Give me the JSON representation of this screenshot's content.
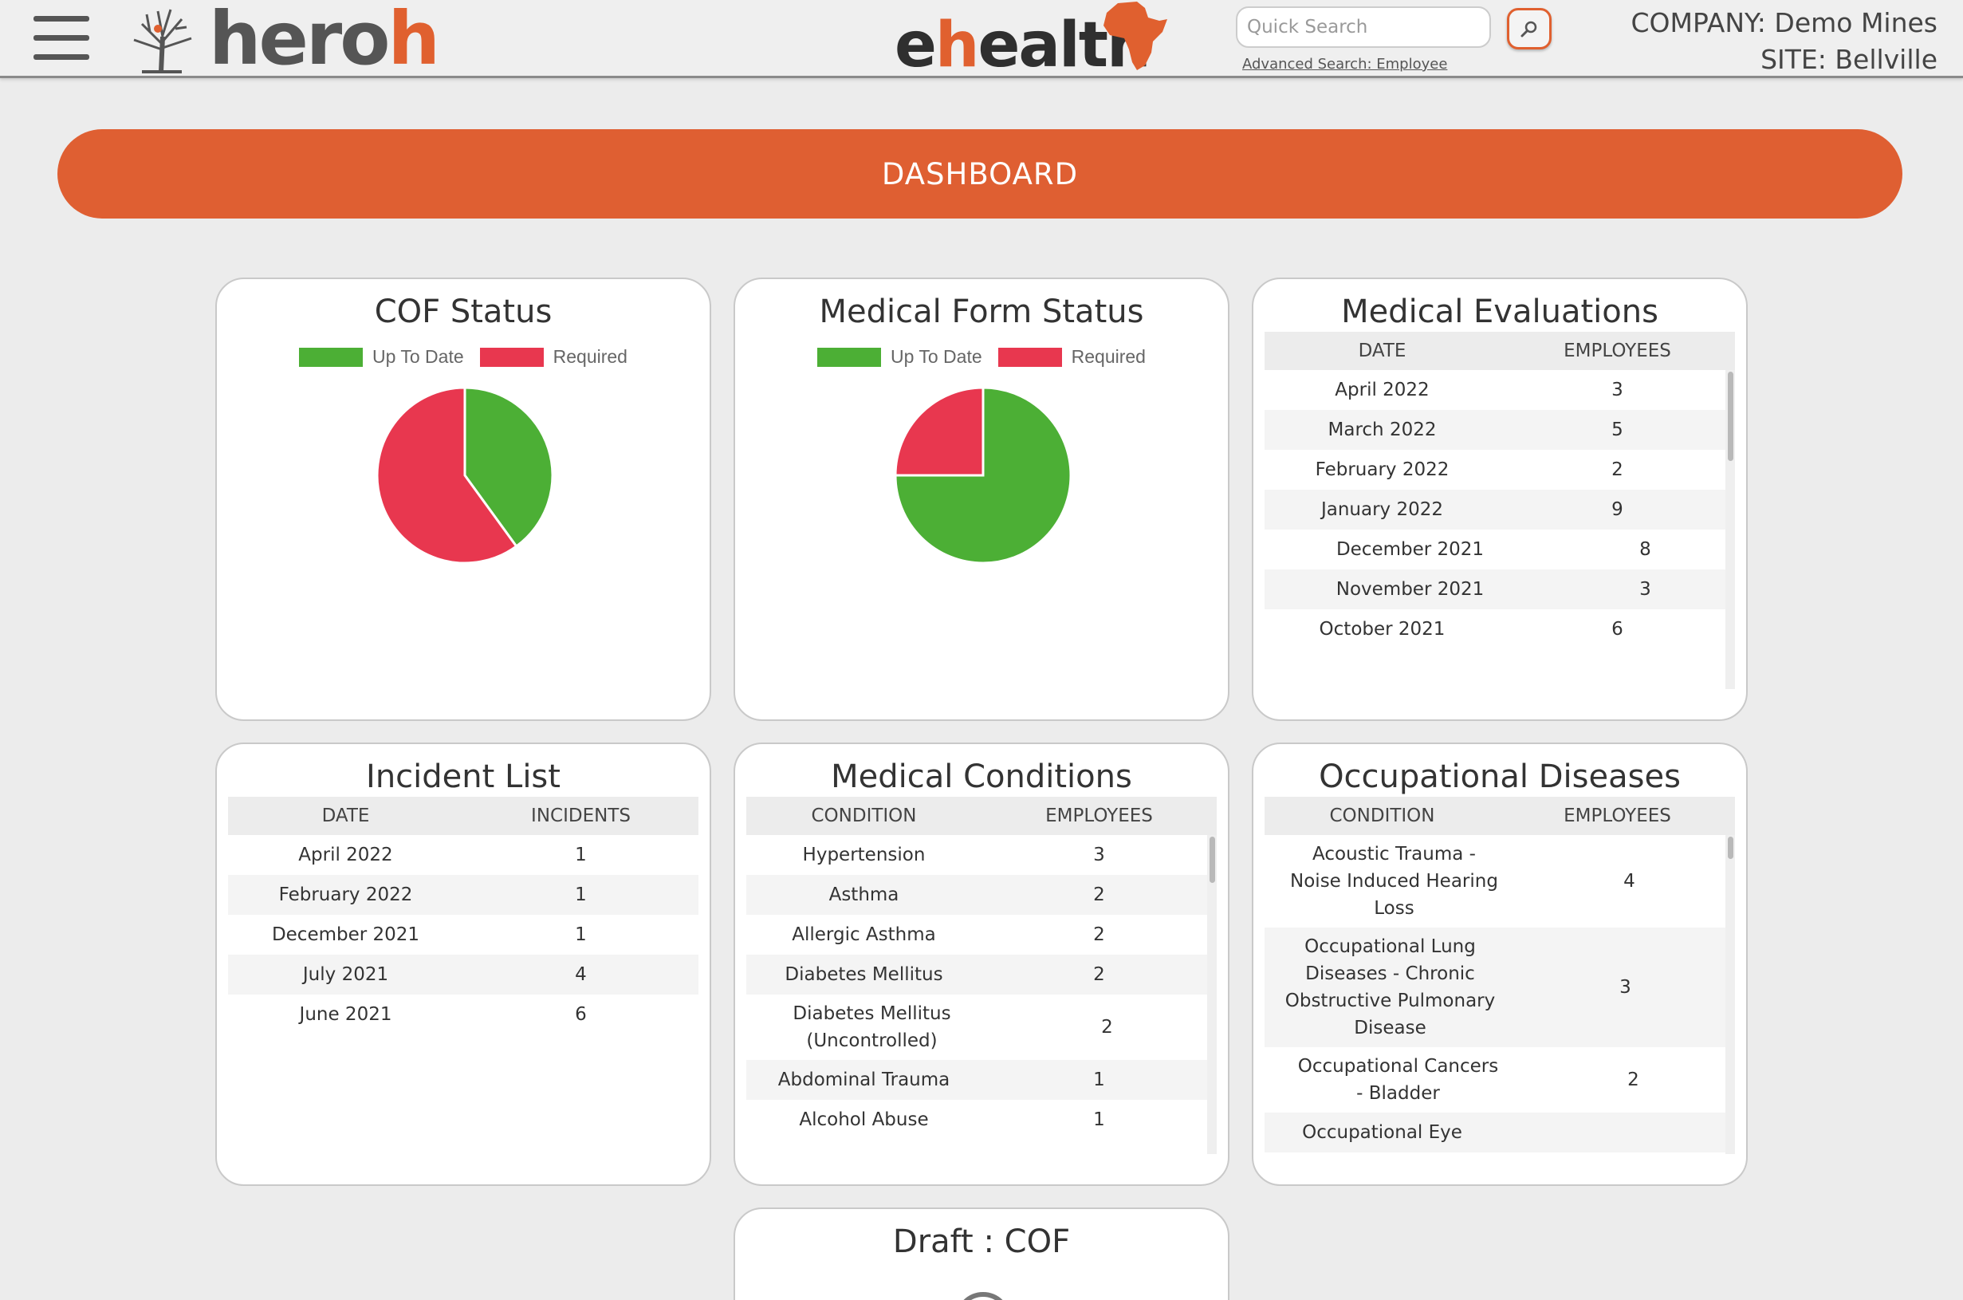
{
  "header": {
    "brand_heroh_main": "hero",
    "brand_heroh_accent": "h",
    "brand_ehealth_pre": "e",
    "brand_ehealth_accent": "h",
    "brand_ehealth_post": "ealth",
    "search_placeholder": "Quick Search",
    "advanced_search_label": "Advanced Search: Employee",
    "company": "COMPANY: Demo Mines",
    "site": "SITE: Bellville",
    "accent_color": "#e0602f"
  },
  "banner": {
    "title": "DASHBOARD"
  },
  "cof_status": {
    "title": "COF Status",
    "chart_data": {
      "type": "pie",
      "title": "COF Status",
      "labels": [
        "Up To Date",
        "Required"
      ],
      "values": [
        40,
        60
      ],
      "colors": [
        "#4caf35",
        "#e8374f"
      ],
      "legend": "top"
    }
  },
  "medical_form_status": {
    "title": "Medical Form Status",
    "chart_data": {
      "type": "pie",
      "title": "Medical Form Status",
      "labels": [
        "Up To Date",
        "Required"
      ],
      "values": [
        75,
        25
      ],
      "colors": [
        "#4caf35",
        "#e8374f"
      ],
      "legend": "top"
    }
  },
  "medical_evaluations": {
    "title": "Medical Evaluations",
    "columns": [
      "DATE",
      "EMPLOYEES"
    ],
    "rows": [
      {
        "date": "April 2022",
        "employees": "3"
      },
      {
        "date": "March 2022",
        "employees": "5"
      },
      {
        "date": "February 2022",
        "employees": "2"
      },
      {
        "date": "January 2022",
        "employees": "9"
      },
      {
        "date": "December 2021",
        "employees": "8"
      },
      {
        "date": "November 2021",
        "employees": "3"
      },
      {
        "date": "October 2021",
        "employees": "6"
      }
    ]
  },
  "incident_list": {
    "title": "Incident List",
    "columns": [
      "DATE",
      "INCIDENTS"
    ],
    "rows": [
      {
        "date": "April 2022",
        "incidents": "1"
      },
      {
        "date": "February 2022",
        "incidents": "1"
      },
      {
        "date": "December 2021",
        "incidents": "1"
      },
      {
        "date": "July 2021",
        "incidents": "4"
      },
      {
        "date": "June 2021",
        "incidents": "6"
      }
    ]
  },
  "medical_conditions": {
    "title": "Medical Conditions",
    "columns": [
      "CONDITION",
      "EMPLOYEES"
    ],
    "rows": [
      {
        "condition": "Hypertension",
        "employees": "3"
      },
      {
        "condition": "Asthma",
        "employees": "2"
      },
      {
        "condition": "Allergic Asthma",
        "employees": "2"
      },
      {
        "condition": "Diabetes Mellitus",
        "employees": "2"
      },
      {
        "condition": "Diabetes Mellitus (Uncontrolled)",
        "employees": "2"
      },
      {
        "condition": "Abdominal Trauma",
        "employees": "1"
      },
      {
        "condition": "Alcohol Abuse",
        "employees": "1"
      }
    ]
  },
  "occupational_diseases": {
    "title": "Occupational Diseases",
    "columns": [
      "CONDITION",
      "EMPLOYEES"
    ],
    "rows": [
      {
        "condition": "Acoustic Trauma - Noise Induced Hearing Loss",
        "employees": "4"
      },
      {
        "condition": "Occupational Lung Diseases - Chronic Obstructive Pulmonary Disease",
        "employees": "3"
      },
      {
        "condition": "Occupational Cancers - Bladder",
        "employees": "2"
      },
      {
        "condition": "Occupational Eye",
        "employees": ""
      }
    ]
  },
  "draft_cof": {
    "title": "Draft : COF"
  }
}
